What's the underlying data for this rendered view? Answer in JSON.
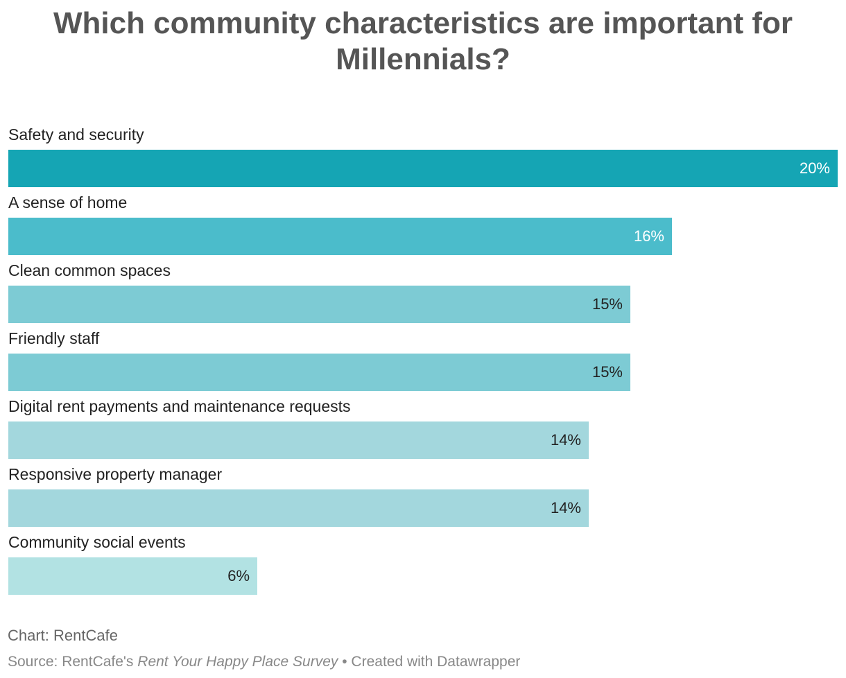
{
  "chart_data": {
    "type": "bar",
    "orientation": "horizontal",
    "title": "Which community characteristics are important for Millennials?",
    "categories": [
      "Safety and security",
      "A sense of home",
      "Clean common spaces",
      "Friendly staff",
      "Digital rent payments and maintenance requests",
      "Responsive property manager",
      "Community social events"
    ],
    "values": [
      20,
      16,
      15,
      15,
      14,
      14,
      6
    ],
    "value_labels": [
      "20%",
      "16%",
      "15%",
      "15%",
      "14%",
      "14%",
      "6%"
    ],
    "colors": [
      "#15a5b4",
      "#4bbccb",
      "#7dcbd4",
      "#7dcbd4",
      "#a3d7dd",
      "#a3d7dd",
      "#b2e2e3"
    ],
    "label_colors": [
      "#ffffff",
      "#ffffff",
      "#222222",
      "#222222",
      "#222222",
      "#222222",
      "#222222"
    ],
    "xlim": [
      0,
      20
    ],
    "unit": "%"
  },
  "footer": {
    "chart_credit": "Chart: RentCafe",
    "source_prefix": "Source: RentCafe's",
    "source_title": "Rent Your Happy Place Survey",
    "source_suffix": "• Created with Datawrapper"
  }
}
